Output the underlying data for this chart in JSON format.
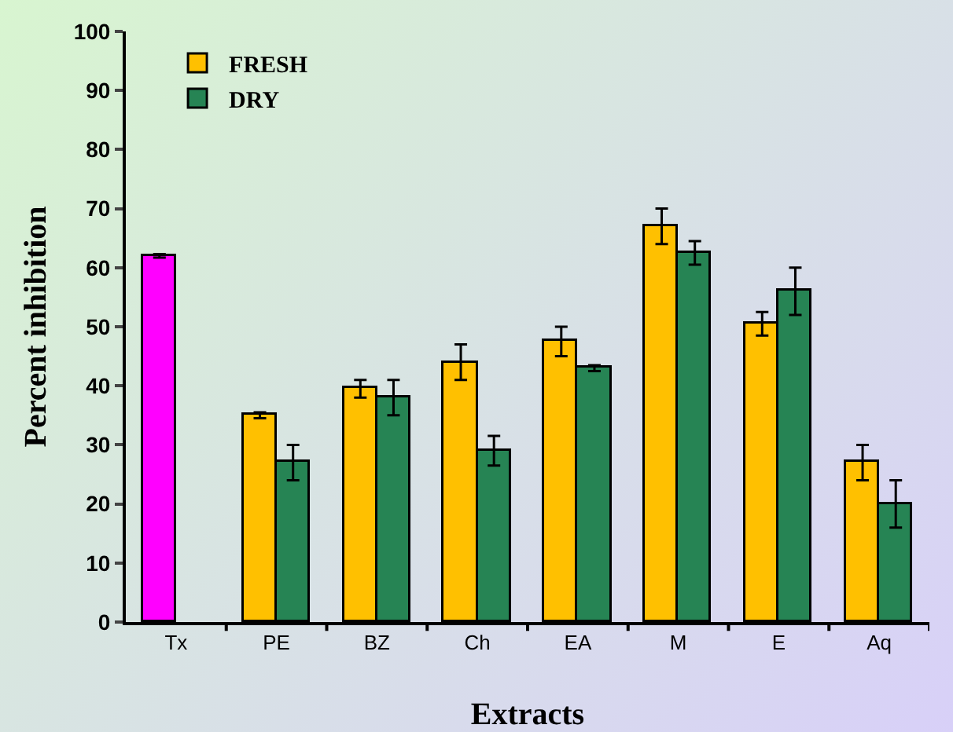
{
  "chart_data": {
    "type": "bar",
    "xlabel": "Extracts",
    "ylabel": "Percent inhibition",
    "categories": [
      "Tx",
      "PE",
      "BZ",
      "Ch",
      "EA",
      "M",
      "E",
      "Aq"
    ],
    "series": [
      {
        "color": "#ff00ff",
        "values": [
          62,
          null,
          null,
          null,
          null,
          null,
          null,
          null
        ],
        "errors": [
          0.3,
          null,
          null,
          null,
          null,
          null,
          null,
          null
        ]
      },
      {
        "name": "FRESH",
        "color": "#ffc000",
        "values": [
          null,
          35,
          39.5,
          44,
          47.5,
          67,
          50.5,
          27
        ],
        "errors": [
          null,
          0.5,
          1.5,
          3,
          2.5,
          3,
          2,
          3
        ]
      },
      {
        "name": "DRY",
        "color": "#268454",
        "values": [
          null,
          27,
          38,
          29,
          43,
          62.5,
          56,
          20
        ],
        "errors": [
          null,
          3,
          3,
          2.5,
          0.5,
          2,
          4,
          4
        ]
      }
    ],
    "ylim": [
      0,
      100
    ],
    "yticks": [
      0,
      10,
      20,
      30,
      40,
      50,
      60,
      70,
      80,
      90,
      100
    ],
    "grid": false,
    "legend": "top left"
  }
}
